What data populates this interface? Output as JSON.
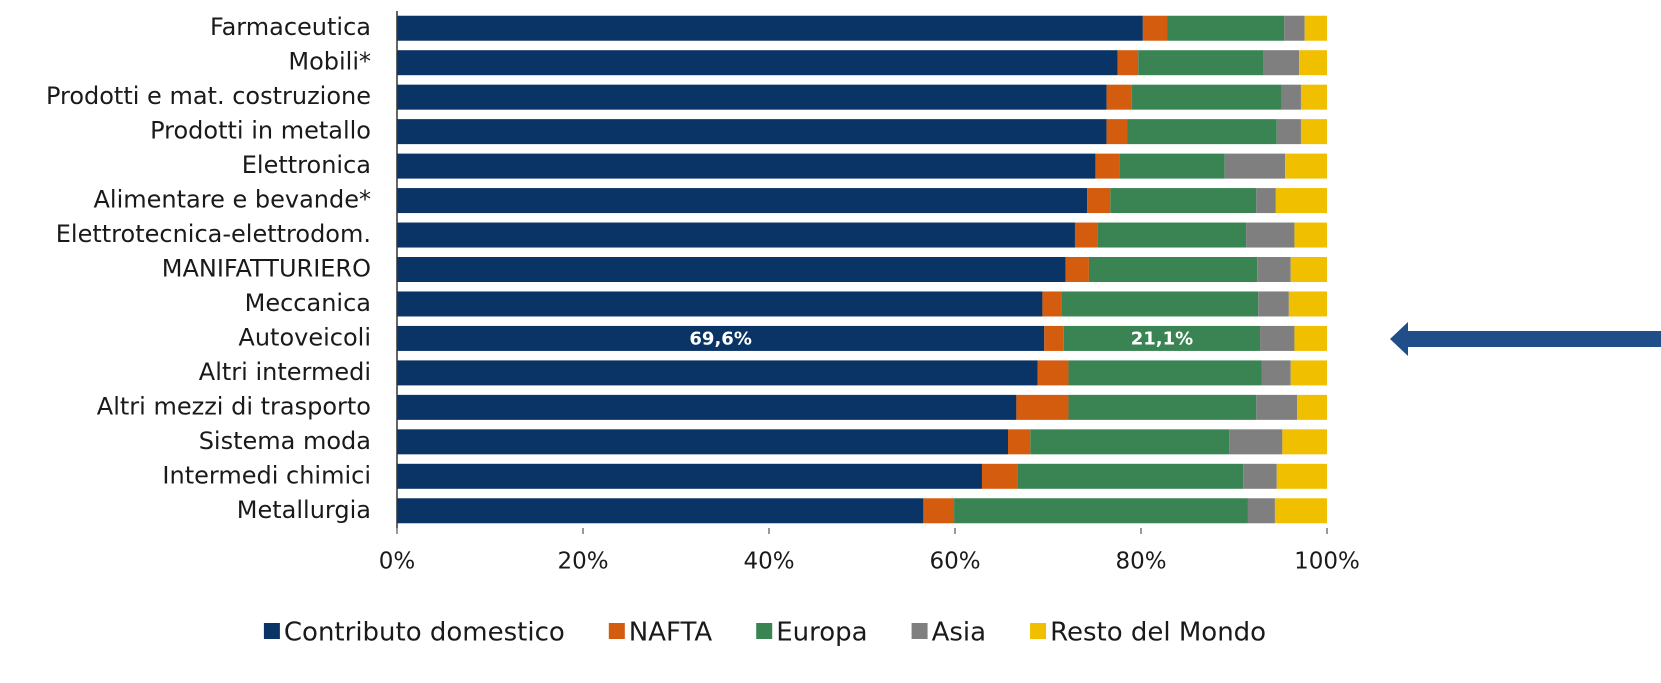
{
  "chart_data": {
    "type": "stacked_barh",
    "categories": [
      "Farmaceutica",
      "Mobili*",
      "Prodotti e mat. costruzione",
      "Prodotti in metallo",
      "Elettronica",
      "Alimentare e bevande*",
      "Elettrotecnica-elettrodom.",
      "MANIFATTURIERO",
      "Meccanica",
      "Autoveicoli",
      "Altri intermedi",
      "Altri mezzi di trasporto",
      "Sistema moda",
      "Intermedi chimici",
      "Metallurgia"
    ],
    "series": [
      {
        "name": "Contributo domestico",
        "color": "#0b3466",
        "values": [
          80.2,
          77.5,
          76.3,
          76.3,
          75.1,
          74.2,
          72.9,
          71.9,
          69.4,
          69.6,
          68.9,
          66.6,
          65.7,
          62.9,
          56.6
        ],
        "value_labels": [
          null,
          null,
          null,
          null,
          null,
          null,
          null,
          null,
          null,
          "69,6%",
          null,
          null,
          null,
          null,
          null
        ]
      },
      {
        "name": "NAFTA",
        "color": "#d45c0e",
        "values": [
          2.6,
          2.2,
          2.7,
          2.2,
          2.6,
          2.5,
          2.4,
          2.5,
          2.1,
          2.1,
          3.3,
          5.6,
          2.4,
          3.8,
          3.3
        ]
      },
      {
        "name": "Europa",
        "color": "#3a8454",
        "values": [
          12.6,
          13.5,
          16.1,
          16.1,
          11.3,
          15.7,
          16.0,
          18.1,
          21.1,
          21.1,
          20.8,
          20.2,
          21.4,
          24.3,
          31.6
        ],
        "value_labels": [
          null,
          null,
          null,
          null,
          null,
          null,
          null,
          null,
          null,
          "21,1%",
          null,
          null,
          null,
          null,
          null
        ]
      },
      {
        "name": "Asia",
        "color": "#7f7f7f",
        "values": [
          2.2,
          3.8,
          2.1,
          2.6,
          6.5,
          2.1,
          5.2,
          3.6,
          3.3,
          3.7,
          3.1,
          4.4,
          5.7,
          3.6,
          2.9
        ]
      },
      {
        "name": "Resto del Mondo",
        "color": "#f0c000",
        "values": [
          2.4,
          3.0,
          2.8,
          2.8,
          4.5,
          5.5,
          3.5,
          3.9,
          4.1,
          3.5,
          3.9,
          3.2,
          4.8,
          5.4,
          5.6
        ]
      }
    ],
    "xlim": [
      0,
      100
    ],
    "xticks": [
      {
        "value": 0,
        "label": "0%"
      },
      {
        "value": 20,
        "label": "20%"
      },
      {
        "value": 40,
        "label": "40%"
      },
      {
        "value": 60,
        "label": "60%"
      },
      {
        "value": 80,
        "label": "80%"
      },
      {
        "value": 100,
        "label": "100%"
      }
    ],
    "legend": "bottom"
  }
}
